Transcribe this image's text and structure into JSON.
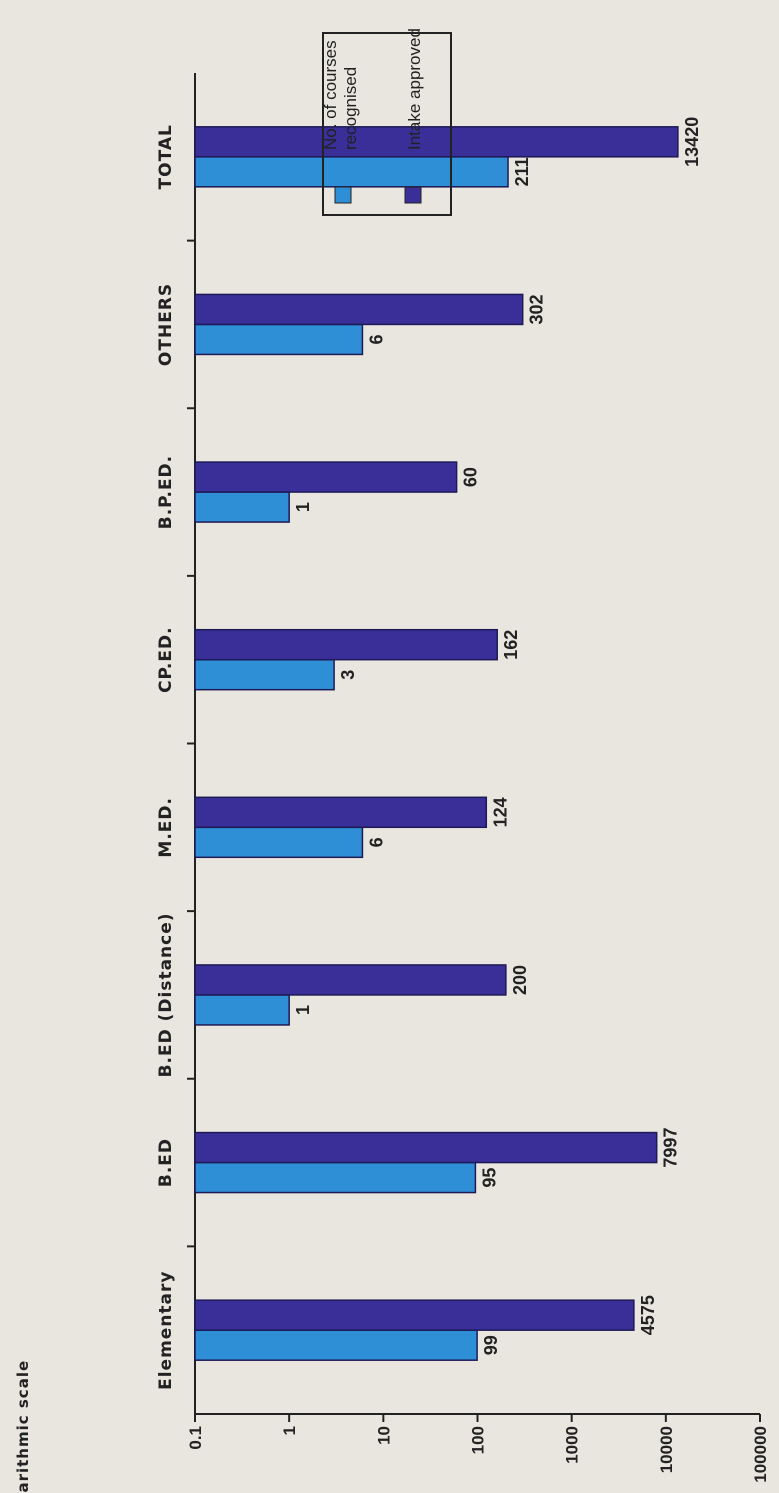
{
  "chart_data": {
    "type": "bar",
    "orientation": "vertical",
    "scale": "log",
    "ylabel": "Logarithmic scale",
    "ylim": [
      0.1,
      100000
    ],
    "yticks": [
      "0.1",
      "1",
      "10",
      "100",
      "1000",
      "10000",
      "100000"
    ],
    "categories": [
      "Elementary",
      "B.ED",
      "B.ED (Distance)",
      "M.ED.",
      "CP.ED.",
      "B.P.ED.",
      "OTHERS",
      "TOTAL"
    ],
    "series": [
      {
        "name": "No. of courses recognised",
        "values": [
          99,
          95,
          1,
          6,
          3,
          1,
          6,
          211
        ],
        "labels": [
          "99",
          "95",
          "1",
          "6",
          "3",
          "1",
          "6",
          "211"
        ],
        "color": "#2f8fd6"
      },
      {
        "name": "Intake approved",
        "values": [
          4575,
          7997,
          200,
          124,
          162,
          60,
          302,
          13420
        ],
        "labels": [
          "4575",
          "7997",
          "200",
          "124",
          "162",
          "60",
          "302",
          "13420"
        ],
        "color": "#3a2e98"
      }
    ],
    "legend": {
      "placement": "top-right",
      "items": [
        "No. of courses recognised",
        "Intake approved"
      ]
    },
    "grid": false
  }
}
